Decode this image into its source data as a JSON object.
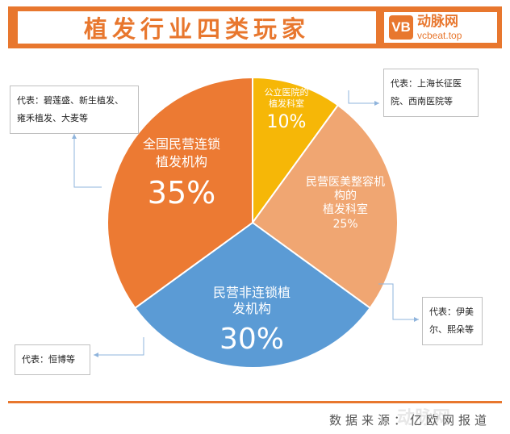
{
  "header": {
    "title": "植发行业四类玩家"
  },
  "logo": {
    "mark": "VB",
    "name": "动脉网",
    "url": "vcbeat.top"
  },
  "source": "数据来源：亿欧网报道",
  "watermark": "动脉网",
  "chart_data": {
    "type": "pie",
    "title": "植发行业四类玩家",
    "slices": [
      {
        "name": "公立医院的植发科室",
        "lines": [
          "公立医院的",
          "植发科室"
        ],
        "value": 10,
        "label": "10%",
        "color": "#f6b707"
      },
      {
        "name": "民营医美整容机构的植发科室",
        "lines": [
          "民营医美整容机",
          "构的",
          "植发科室"
        ],
        "value": 25,
        "label": "25%",
        "color": "#f0a672"
      },
      {
        "name": "民营非连锁植发机构",
        "lines": [
          "民营非连锁植",
          "发机构"
        ],
        "value": 30,
        "label": "30%",
        "color": "#5b9bd5"
      },
      {
        "name": "全国民营连锁植发机构",
        "lines": [
          "全国民营连锁",
          "植发机构"
        ],
        "value": 35,
        "label": "35%",
        "color": "#ec7a33"
      }
    ],
    "callouts": [
      {
        "slice": 0,
        "lines": [
          "代表：上海长征医",
          "院、西南医院等"
        ]
      },
      {
        "slice": 1,
        "lines": [
          "代表：伊美",
          "尔、熙朵等"
        ]
      },
      {
        "slice": 2,
        "lines": [
          "代表：恒博等"
        ]
      },
      {
        "slice": 3,
        "lines": [
          "代表：碧莲盛、新生植发、",
          "雍禾植发、大麦等"
        ]
      }
    ]
  }
}
